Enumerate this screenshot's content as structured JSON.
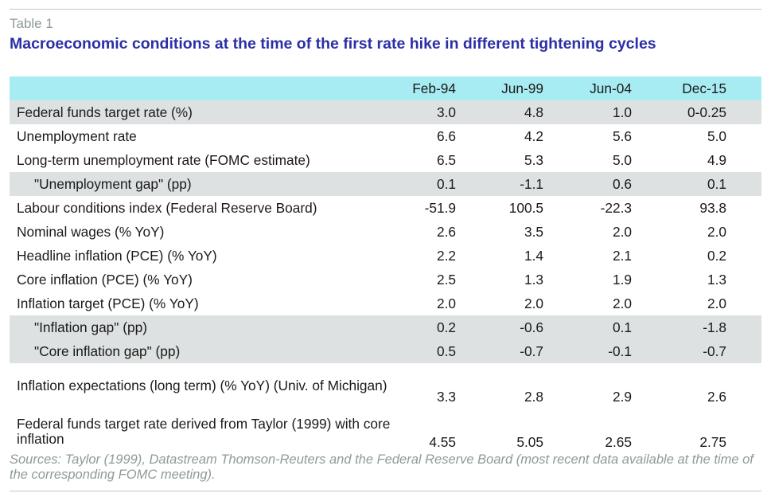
{
  "table": {
    "label": "Table 1",
    "title": "Macroeconomic conditions at the time of the first rate hike in different tightening cycles",
    "columns": [
      "Feb-94",
      "Jun-99",
      "Jun-04",
      "Dec-15"
    ],
    "rows": [
      {
        "label": "Federal funds target rate (%)",
        "values": [
          "3.0",
          "4.8",
          "1.0",
          "0-0.25"
        ]
      },
      {
        "label": "Unemployment rate",
        "values": [
          "6.6",
          "4.2",
          "5.6",
          "5.0"
        ]
      },
      {
        "label": "Long-term unemployment rate (FOMC estimate)",
        "values": [
          "6.5",
          "5.3",
          "5.0",
          "4.9"
        ]
      },
      {
        "label": "\"Unemployment gap\" (pp)",
        "values": [
          "0.1",
          "-1.1",
          "0.6",
          "0.1"
        ]
      },
      {
        "label": "Labour conditions index (Federal Reserve Board)",
        "values": [
          "-51.9",
          "100.5",
          "-22.3",
          "93.8"
        ]
      },
      {
        "label": "Nominal wages (% YoY)",
        "values": [
          "2.6",
          "3.5",
          "2.0",
          "2.0"
        ]
      },
      {
        "label": "Headline inflation (PCE) (% YoY)",
        "values": [
          "2.2",
          "1.4",
          "2.1",
          "0.2"
        ]
      },
      {
        "label": "Core inflation (PCE) (% YoY)",
        "values": [
          "2.5",
          "1.3",
          "1.9",
          "1.3"
        ]
      },
      {
        "label": "Inflation target (PCE) (% YoY)",
        "values": [
          "2.0",
          "2.0",
          "2.0",
          "2.0"
        ]
      },
      {
        "label": "\"Inflation gap\" (pp)",
        "values": [
          "0.2",
          "-0.6",
          "0.1",
          "-1.8"
        ]
      },
      {
        "label": "\"Core inflation gap\" (pp)",
        "values": [
          "0.5",
          "-0.7",
          "-0.1",
          "-0.7"
        ]
      },
      {
        "label": "Inflation expectations (long term) (% YoY) (Univ. of Michigan)",
        "values": [
          "3.3",
          "2.8",
          "2.9",
          "2.6"
        ]
      },
      {
        "label": "Federal funds target rate derived from Taylor (1999) with core inflation",
        "values": [
          "4.55",
          "5.05",
          "2.65",
          "2.75"
        ]
      }
    ],
    "sources": "Sources: Taylor (1999), Datastream Thomson-Reuters and the Federal Reserve Board (most recent data available at the time of the corresponding FOMC meeting)."
  }
}
